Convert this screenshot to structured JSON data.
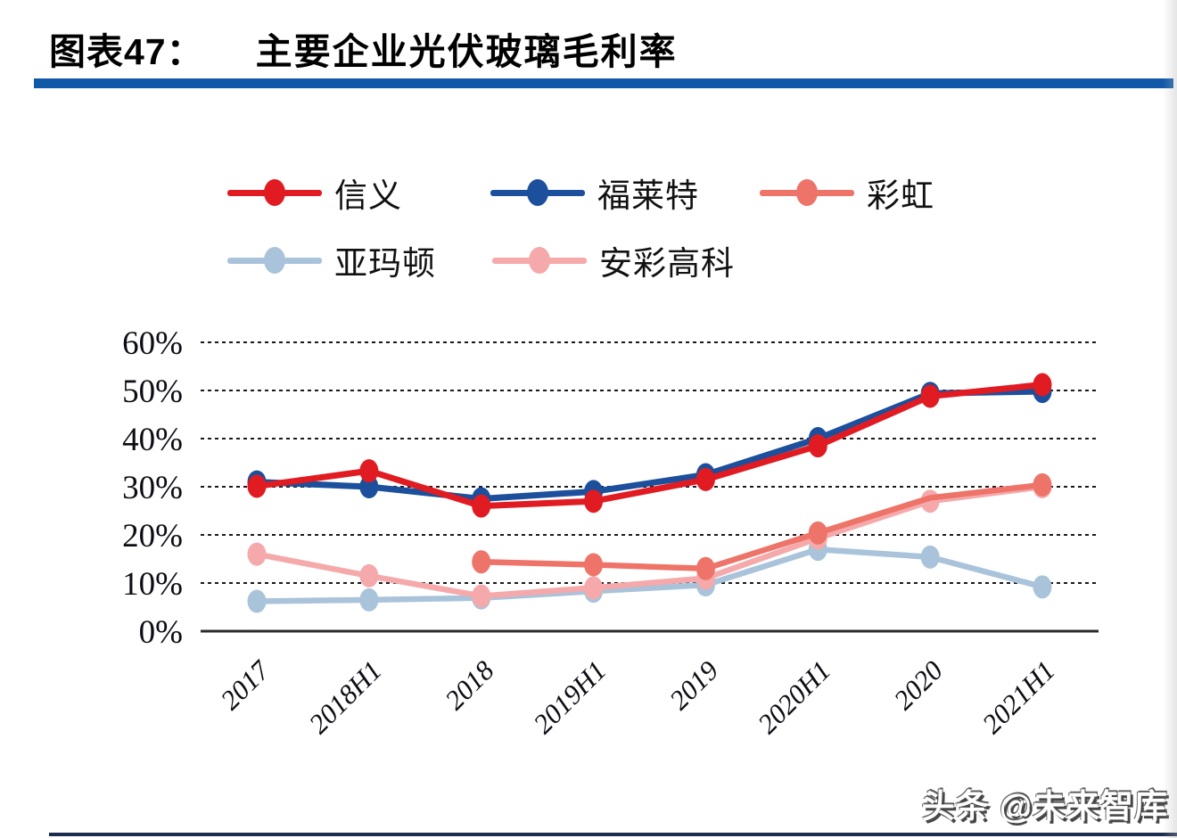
{
  "header": {
    "figure_label": "图表47：",
    "figure_title": "主要企业光伏玻璃毛利率"
  },
  "watermark_text": "头条 @未来智库",
  "colors": {
    "accent_rule": "#1159a8",
    "bottom_rule": "#1c2b4e",
    "gridline": "#1a1a1a",
    "axis_line": "#2a2a2a"
  },
  "chart_data": {
    "type": "line",
    "title": "主要企业光伏玻璃毛利率",
    "categories": [
      "2017",
      "2018H1",
      "2018",
      "2019H1",
      "2019",
      "2020H1",
      "2020",
      "2021H1"
    ],
    "y_ticks": [
      "60%",
      "50%",
      "40%",
      "30%",
      "20%",
      "10%",
      "0%"
    ],
    "ylim": [
      0,
      60
    ],
    "grid": "horizontal-dotted",
    "legend_position": "top",
    "xlabel": "",
    "ylabel": "",
    "series": [
      {
        "key": "almaden",
        "name": "亚玛顿",
        "color": "#a9c3da",
        "values": [
          6.2,
          6.5,
          6.9,
          8.3,
          9.6,
          17.0,
          15.4,
          9.2
        ]
      },
      {
        "key": "ancai",
        "name": "安彩高科",
        "color": "#f5a9ab",
        "values": [
          16.0,
          11.5,
          7.3,
          9.0,
          11.0,
          19.3,
          27.0,
          30.0
        ]
      },
      {
        "key": "caihong",
        "name": "彩虹",
        "color": "#ee7368",
        "values": [
          null,
          null,
          14.4,
          13.8,
          13.0,
          20.4,
          27.7,
          30.4
        ],
        "hide_markers": [
          6
        ]
      },
      {
        "key": "flat",
        "name": "福莱特",
        "color": "#1c4f9c",
        "values": [
          31.0,
          30.0,
          27.5,
          29.0,
          32.5,
          40.0,
          49.4,
          49.8
        ]
      },
      {
        "key": "xinyi",
        "name": "信义",
        "color": "#e11b22",
        "values": [
          30.1,
          33.3,
          26.0,
          27.0,
          31.5,
          38.5,
          48.8,
          51.2
        ]
      }
    ],
    "legend_order": [
      "信义",
      "福莱特",
      "彩虹",
      "亚玛顿",
      "安彩高科"
    ]
  }
}
